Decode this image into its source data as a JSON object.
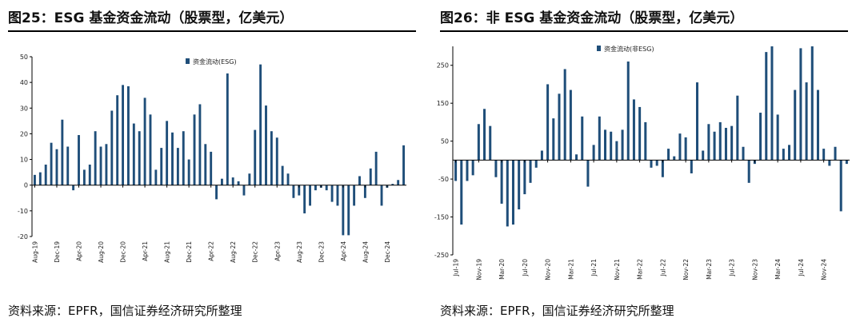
{
  "panels": [
    {
      "title": "图25：ESG 基金资金流动（股票型，亿美元）",
      "source": "资料来源：EPFR，国信证券经济研究所整理"
    },
    {
      "title": "图26：非 ESG 基金资金流动（股票型，亿美元）",
      "source": "资料来源：EPFR，国信证券经济研究所整理"
    }
  ],
  "colors": {
    "bar": "#1f4e79",
    "axis": "#000000",
    "text": "#222222"
  },
  "chart_data": [
    {
      "type": "bar",
      "title": "ESG 基金资金流动（股票型，亿美元）",
      "legend": "资金流动(ESG)",
      "legend_position": "top-center",
      "ylim": [
        -20,
        50
      ],
      "yticks": [
        -20,
        -10,
        0,
        10,
        20,
        30,
        40,
        50
      ],
      "start": "Aug-19",
      "xtick_labels": [
        "Aug-19",
        "Dec-19",
        "Apr-20",
        "Aug-20",
        "Dec-20",
        "Apr-21",
        "Aug-21",
        "Dec-21",
        "Apr-22",
        "Aug-22",
        "Dec-22",
        "Apr-23",
        "Aug-23",
        "Dec-23",
        "Apr-24",
        "Aug-24",
        "Dec-24"
      ],
      "values": [
        4,
        5,
        8,
        16.5,
        14,
        25.5,
        15,
        -2,
        19.5,
        6,
        8,
        21,
        15,
        16,
        29,
        35,
        39,
        38.5,
        24,
        21,
        34,
        27.5,
        6,
        14.5,
        25,
        20.5,
        14.5,
        21,
        10,
        27.5,
        31.5,
        16,
        13,
        -5.5,
        2.5,
        43.5,
        3,
        1.5,
        -4,
        4.5,
        21.5,
        47,
        31,
        21,
        18.5,
        7.5,
        4.5,
        -5,
        -4,
        -11,
        -8,
        -2,
        -1,
        -2,
        -6.5,
        -8,
        -19.5,
        -19.5,
        -8,
        3.5,
        -5,
        6.5,
        13,
        -8,
        -1,
        0.5,
        2,
        15.5
      ]
    },
    {
      "type": "bar",
      "title": "非 ESG 基金资金流动（股票型，亿美元）",
      "legend": "资金流动(非ESG)",
      "legend_position": "top-left",
      "ylim": [
        -250,
        300
      ],
      "yticks": [
        -250,
        -150,
        -50,
        50,
        150,
        250
      ],
      "start": "Jul-19",
      "xtick_labels": [
        "Jul-19",
        "Nov-19",
        "Mar-20",
        "Jul-20",
        "Nov-20",
        "Mar-21",
        "Jul-21",
        "Nov-21",
        "Mar-22",
        "Jul-22",
        "Nov-22",
        "Mar-23",
        "Jul-23",
        "Nov-23",
        "Mar-24",
        "Jul-24",
        "Nov-24"
      ],
      "values": [
        -55,
        -170,
        -55,
        -40,
        95,
        135,
        90,
        -45,
        -115,
        -175,
        -170,
        -130,
        -90,
        -60,
        -20,
        25,
        200,
        110,
        175,
        240,
        185,
        15,
        115,
        -70,
        40,
        115,
        80,
        75,
        50,
        80,
        260,
        160,
        140,
        100,
        -20,
        -15,
        -45,
        30,
        10,
        70,
        60,
        -35,
        205,
        25,
        95,
        75,
        100,
        85,
        90,
        170,
        35,
        -60,
        -10,
        125,
        285,
        300,
        120,
        30,
        40,
        185,
        295,
        205,
        300,
        185,
        30,
        -15,
        35,
        -135,
        -10
      ]
    }
  ]
}
